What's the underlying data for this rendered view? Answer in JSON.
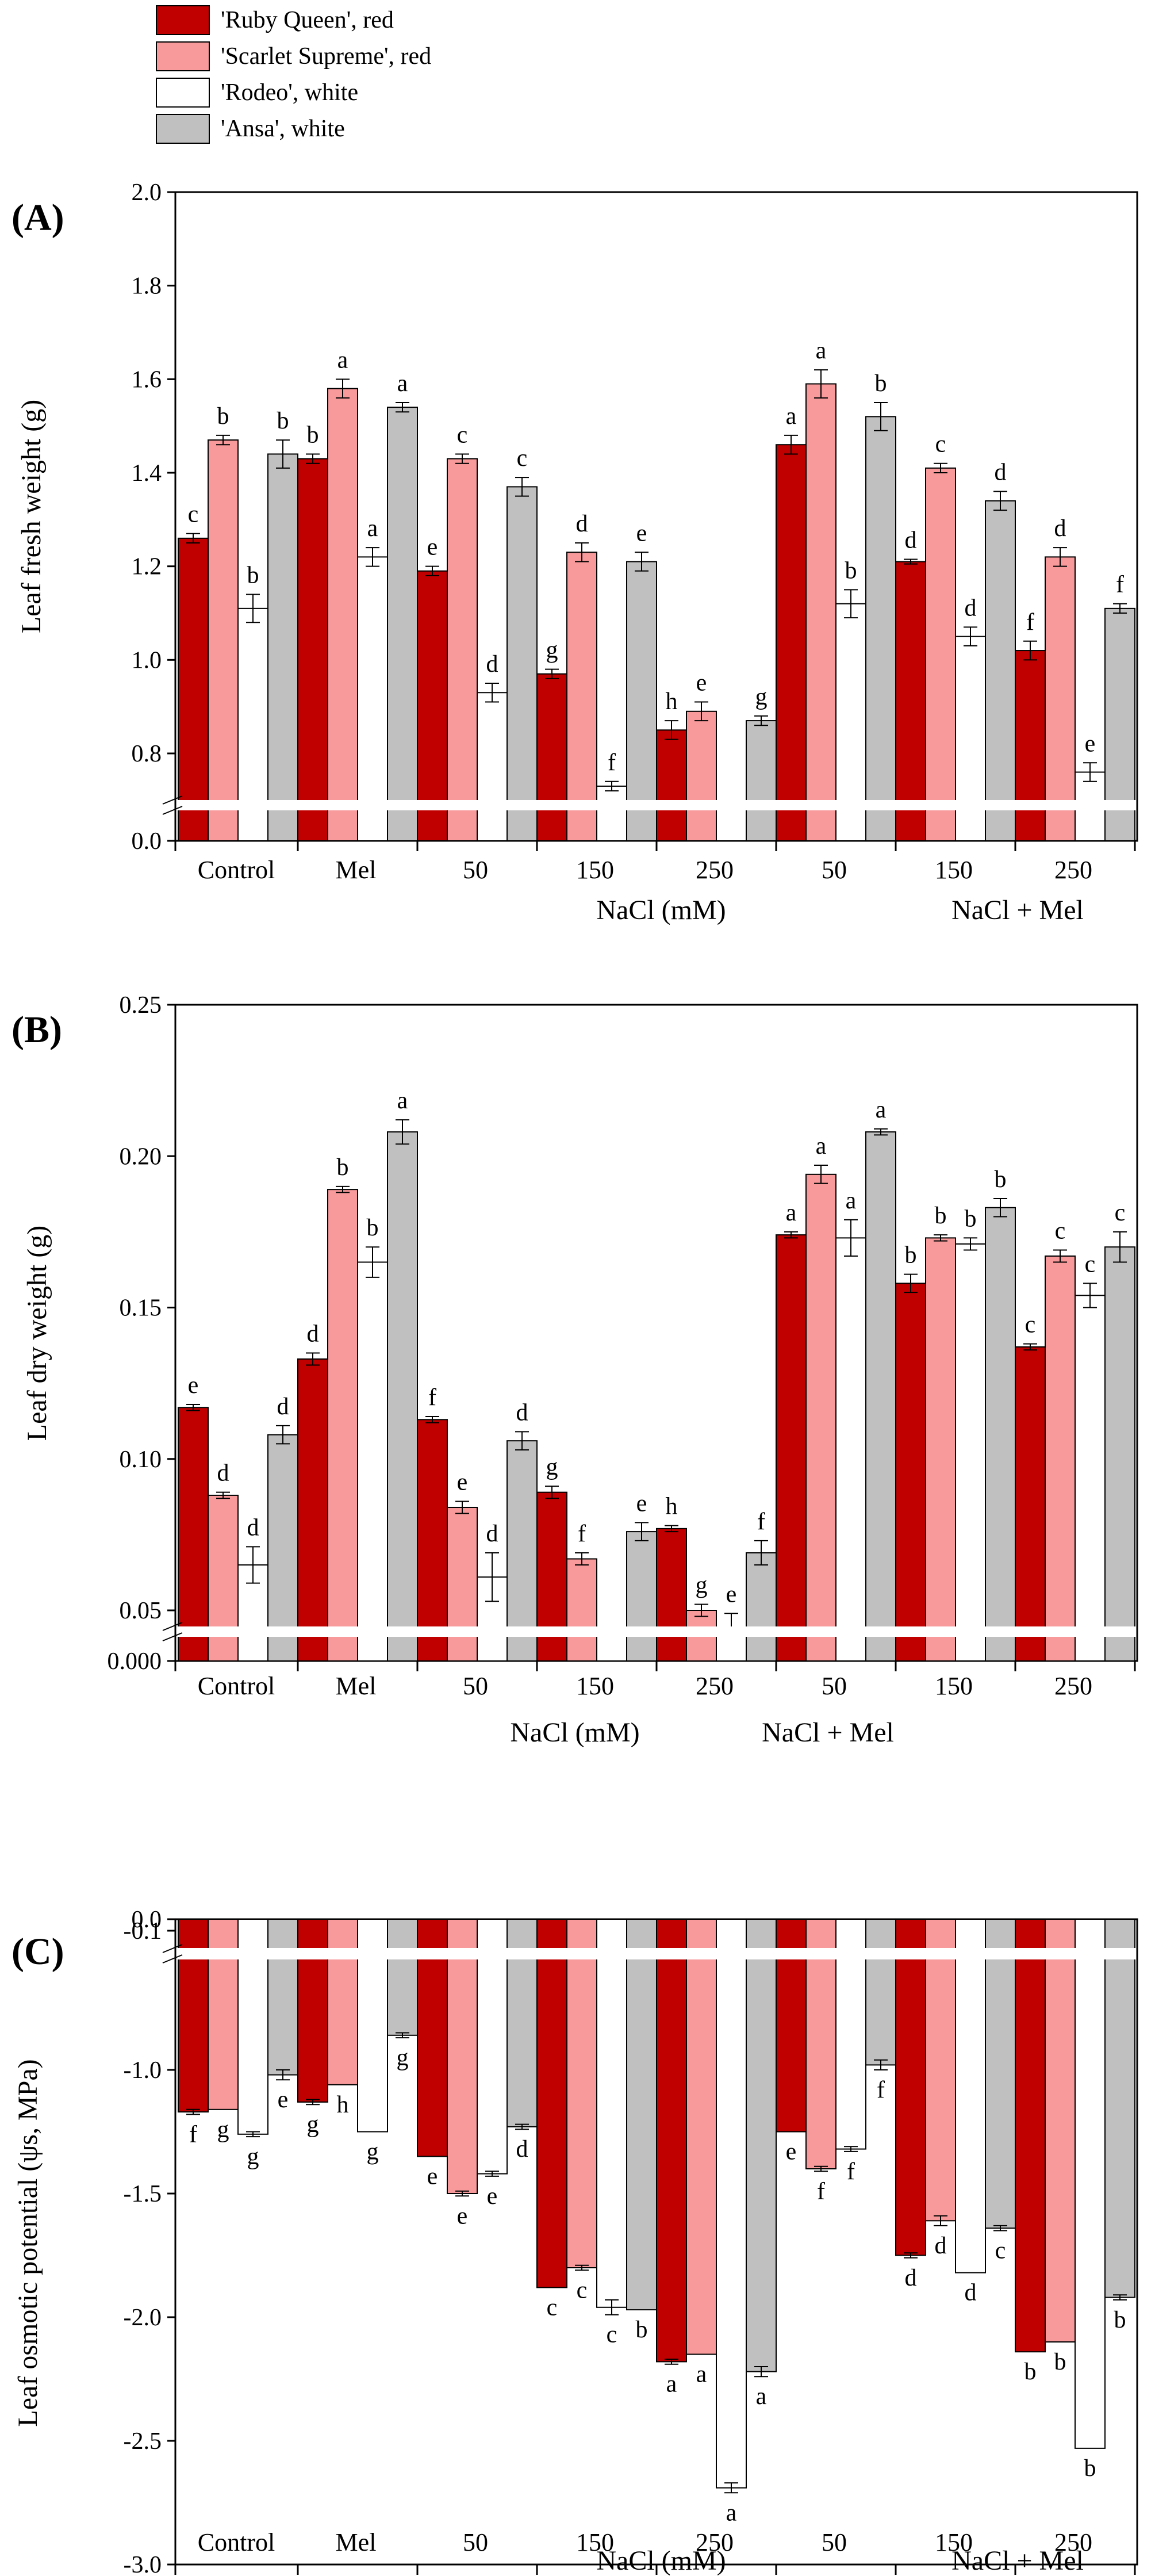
{
  "legend": [
    {
      "label": "'Ruby Queen', red",
      "color": "#c00000"
    },
    {
      "label": "'Scarlet Supreme', red",
      "color": "#f89a9c"
    },
    {
      "label": "'Rodeo', white",
      "color": "#ffffff"
    },
    {
      "label": "'Ansa', white",
      "color": "#c0c0c0"
    }
  ],
  "colors": {
    "ruby_queen": "#c00000",
    "scarlet_supreme": "#f89a9c",
    "rodeo": "#ffffff",
    "ansa": "#c0c0c0",
    "axis": "#000000"
  },
  "chart_data": [
    {
      "type": "bar",
      "panel": "(A)",
      "ylabel": "Leaf fresh weight (g)",
      "categories": [
        "Control",
        "Mel",
        "50",
        "150",
        "250",
        "50",
        "150",
        "250"
      ],
      "group_labels": [
        "NaCl (mM)",
        "NaCl + Mel"
      ],
      "ylim": [
        0.0,
        2.0
      ],
      "axis_break": [
        0.0,
        0.7
      ],
      "yticks": [
        {
          "v": 0.0,
          "t": "0.0"
        },
        {
          "v": 0.8,
          "t": "0.8"
        },
        {
          "v": 1.0,
          "t": "1.0"
        },
        {
          "v": 1.2,
          "t": "1.2"
        },
        {
          "v": 1.4,
          "t": "1.4"
        },
        {
          "v": 1.6,
          "t": "1.6"
        },
        {
          "v": 1.8,
          "t": "1.8"
        },
        {
          "v": 2.0,
          "t": "2.0"
        }
      ],
      "series": [
        {
          "name": "'Ruby Queen', red",
          "values": [
            1.26,
            1.43,
            1.19,
            0.97,
            0.85,
            1.46,
            1.21,
            1.02
          ],
          "errors": [
            0.01,
            0.01,
            0.01,
            0.01,
            0.02,
            0.02,
            0.005,
            0.02
          ],
          "letters": [
            "c",
            "b",
            "e",
            "g",
            "h",
            "a",
            "d",
            "f"
          ]
        },
        {
          "name": "'Scarlet Supreme', red",
          "values": [
            1.47,
            1.58,
            1.43,
            1.23,
            0.89,
            1.59,
            1.41,
            1.22
          ],
          "errors": [
            0.01,
            0.02,
            0.01,
            0.02,
            0.02,
            0.03,
            0.01,
            0.02
          ],
          "letters": [
            "b",
            "a",
            "c",
            "d",
            "e",
            "a",
            "c",
            "d"
          ]
        },
        {
          "name": "'Rodeo', white",
          "values": [
            1.11,
            1.22,
            0.93,
            0.73,
            0.7,
            1.12,
            1.05,
            0.76
          ],
          "errors": [
            0.03,
            0.02,
            0.02,
            0.01,
            0.0,
            0.03,
            0.02,
            0.02
          ],
          "letters": [
            "b",
            "a",
            "d",
            "f",
            "",
            "b",
            "d",
            "e"
          ]
        },
        {
          "name": "'Ansa', white",
          "values": [
            1.44,
            1.54,
            1.37,
            1.21,
            0.87,
            1.52,
            1.34,
            1.11
          ],
          "errors": [
            0.03,
            0.01,
            0.02,
            0.02,
            0.01,
            0.03,
            0.02,
            0.01
          ],
          "letters": [
            "b",
            "a",
            "c",
            "e",
            "g",
            "b",
            "d",
            "f"
          ]
        }
      ]
    },
    {
      "type": "bar",
      "panel": "(B)",
      "ylabel": "Leaf dry weight (g)",
      "categories": [
        "Control",
        "Mel",
        "50",
        "150",
        "250",
        "50",
        "150",
        "250"
      ],
      "group_labels": [
        "NaCl (mM)",
        "NaCl + Mel"
      ],
      "ylim": [
        0.0,
        0.25
      ],
      "axis_break": [
        0.0,
        0.04
      ],
      "yticks": [
        {
          "v": 0.0,
          "t": "0.000"
        },
        {
          "v": 0.05,
          "t": "0.05"
        },
        {
          "v": 0.1,
          "t": "0.10"
        },
        {
          "v": 0.15,
          "t": "0.15"
        },
        {
          "v": 0.2,
          "t": "0.20"
        },
        {
          "v": 0.25,
          "t": "0.25"
        }
      ],
      "series": [
        {
          "name": "'Ruby Queen', red",
          "values": [
            0.117,
            0.133,
            0.113,
            0.089,
            0.077,
            0.174,
            0.158,
            0.137
          ],
          "errors": [
            0.001,
            0.002,
            0.001,
            0.002,
            0.001,
            0.001,
            0.003,
            0.001
          ],
          "letters": [
            "e",
            "d",
            "f",
            "g",
            "h",
            "a",
            "b",
            "c"
          ]
        },
        {
          "name": "'Scarlet Supreme', red",
          "values": [
            0.088,
            0.189,
            0.084,
            0.067,
            0.05,
            0.194,
            0.173,
            0.167
          ],
          "errors": [
            0.001,
            0.001,
            0.002,
            0.002,
            0.002,
            0.003,
            0.001,
            0.002
          ],
          "letters": [
            "d",
            "b",
            "e",
            "f",
            "g",
            "a",
            "b",
            "c"
          ]
        },
        {
          "name": "'Rodeo', white",
          "values": [
            0.065,
            0.165,
            0.061,
            0.04,
            0.044,
            0.173,
            0.171,
            0.154
          ],
          "errors": [
            0.006,
            0.005,
            0.008,
            0.0,
            0.005,
            0.006,
            0.002,
            0.004
          ],
          "letters": [
            "d",
            "b",
            "d",
            "",
            "e",
            "a",
            "b",
            "c"
          ]
        },
        {
          "name": "'Ansa', white",
          "values": [
            0.108,
            0.208,
            0.106,
            0.076,
            0.069,
            0.208,
            0.183,
            0.17
          ],
          "errors": [
            0.003,
            0.004,
            0.003,
            0.003,
            0.004,
            0.001,
            0.003,
            0.005
          ],
          "letters": [
            "d",
            "a",
            "d",
            "e",
            "f",
            "a",
            "b",
            "c"
          ]
        }
      ]
    },
    {
      "type": "bar",
      "panel": "(C)",
      "ylabel": "Leaf osmotic potential (ψs, MPa)",
      "categories": [
        "Control",
        "Mel",
        "50",
        "150",
        "250",
        "50",
        "150",
        "250"
      ],
      "group_labels": [
        "NaCl (mM)",
        "NaCl + Mel"
      ],
      "ylim": [
        -3.0,
        0.0
      ],
      "axis_break": [
        -0.1,
        -0.8
      ],
      "yticks": [
        {
          "v": 0.0,
          "t": "0.0"
        },
        {
          "v": -0.1,
          "t": "-0.1"
        },
        {
          "v": -1.0,
          "t": "-1.0"
        },
        {
          "v": -1.5,
          "t": "-1.5"
        },
        {
          "v": -2.0,
          "t": "-2.0"
        },
        {
          "v": -2.5,
          "t": "-2.5"
        },
        {
          "v": -3.0,
          "t": "-3.0"
        }
      ],
      "series": [
        {
          "name": "'Ruby Queen', red",
          "values": [
            -1.17,
            -1.13,
            -1.35,
            -1.88,
            -2.18,
            -1.25,
            -1.75,
            -2.14
          ],
          "errors": [
            0.01,
            0.01,
            0.0,
            0.0,
            0.01,
            0.0,
            0.01,
            0.0
          ],
          "letters": [
            "f",
            "g",
            "e",
            "c",
            "a",
            "e",
            "d",
            "b"
          ]
        },
        {
          "name": "'Scarlet Supreme', red",
          "values": [
            -1.16,
            -1.06,
            -1.5,
            -1.8,
            -2.15,
            -1.4,
            -1.61,
            -2.1
          ],
          "errors": [
            0.0,
            0.0,
            0.01,
            0.01,
            0.0,
            0.01,
            0.02,
            0.0
          ],
          "letters": [
            "g",
            "h",
            "e",
            "c",
            "a",
            "f",
            "d",
            "b"
          ]
        },
        {
          "name": "'Rodeo', white",
          "values": [
            -1.26,
            -1.25,
            -1.42,
            -1.96,
            -2.69,
            -1.32,
            -1.82,
            -2.53
          ],
          "errors": [
            0.01,
            0.0,
            0.01,
            0.03,
            0.02,
            0.01,
            0.0,
            0.0
          ],
          "letters": [
            "g",
            "g",
            "e",
            "c",
            "a",
            "f",
            "d",
            "b"
          ]
        },
        {
          "name": "'Ansa', white",
          "values": [
            -1.02,
            -0.86,
            -1.23,
            -1.97,
            -2.22,
            -0.98,
            -1.64,
            -1.92
          ],
          "errors": [
            0.02,
            0.01,
            0.01,
            0.0,
            0.02,
            0.02,
            0.01,
            0.01
          ],
          "letters": [
            "e",
            "g",
            "d",
            "b",
            "a",
            "f",
            "c",
            "b"
          ]
        }
      ]
    }
  ]
}
